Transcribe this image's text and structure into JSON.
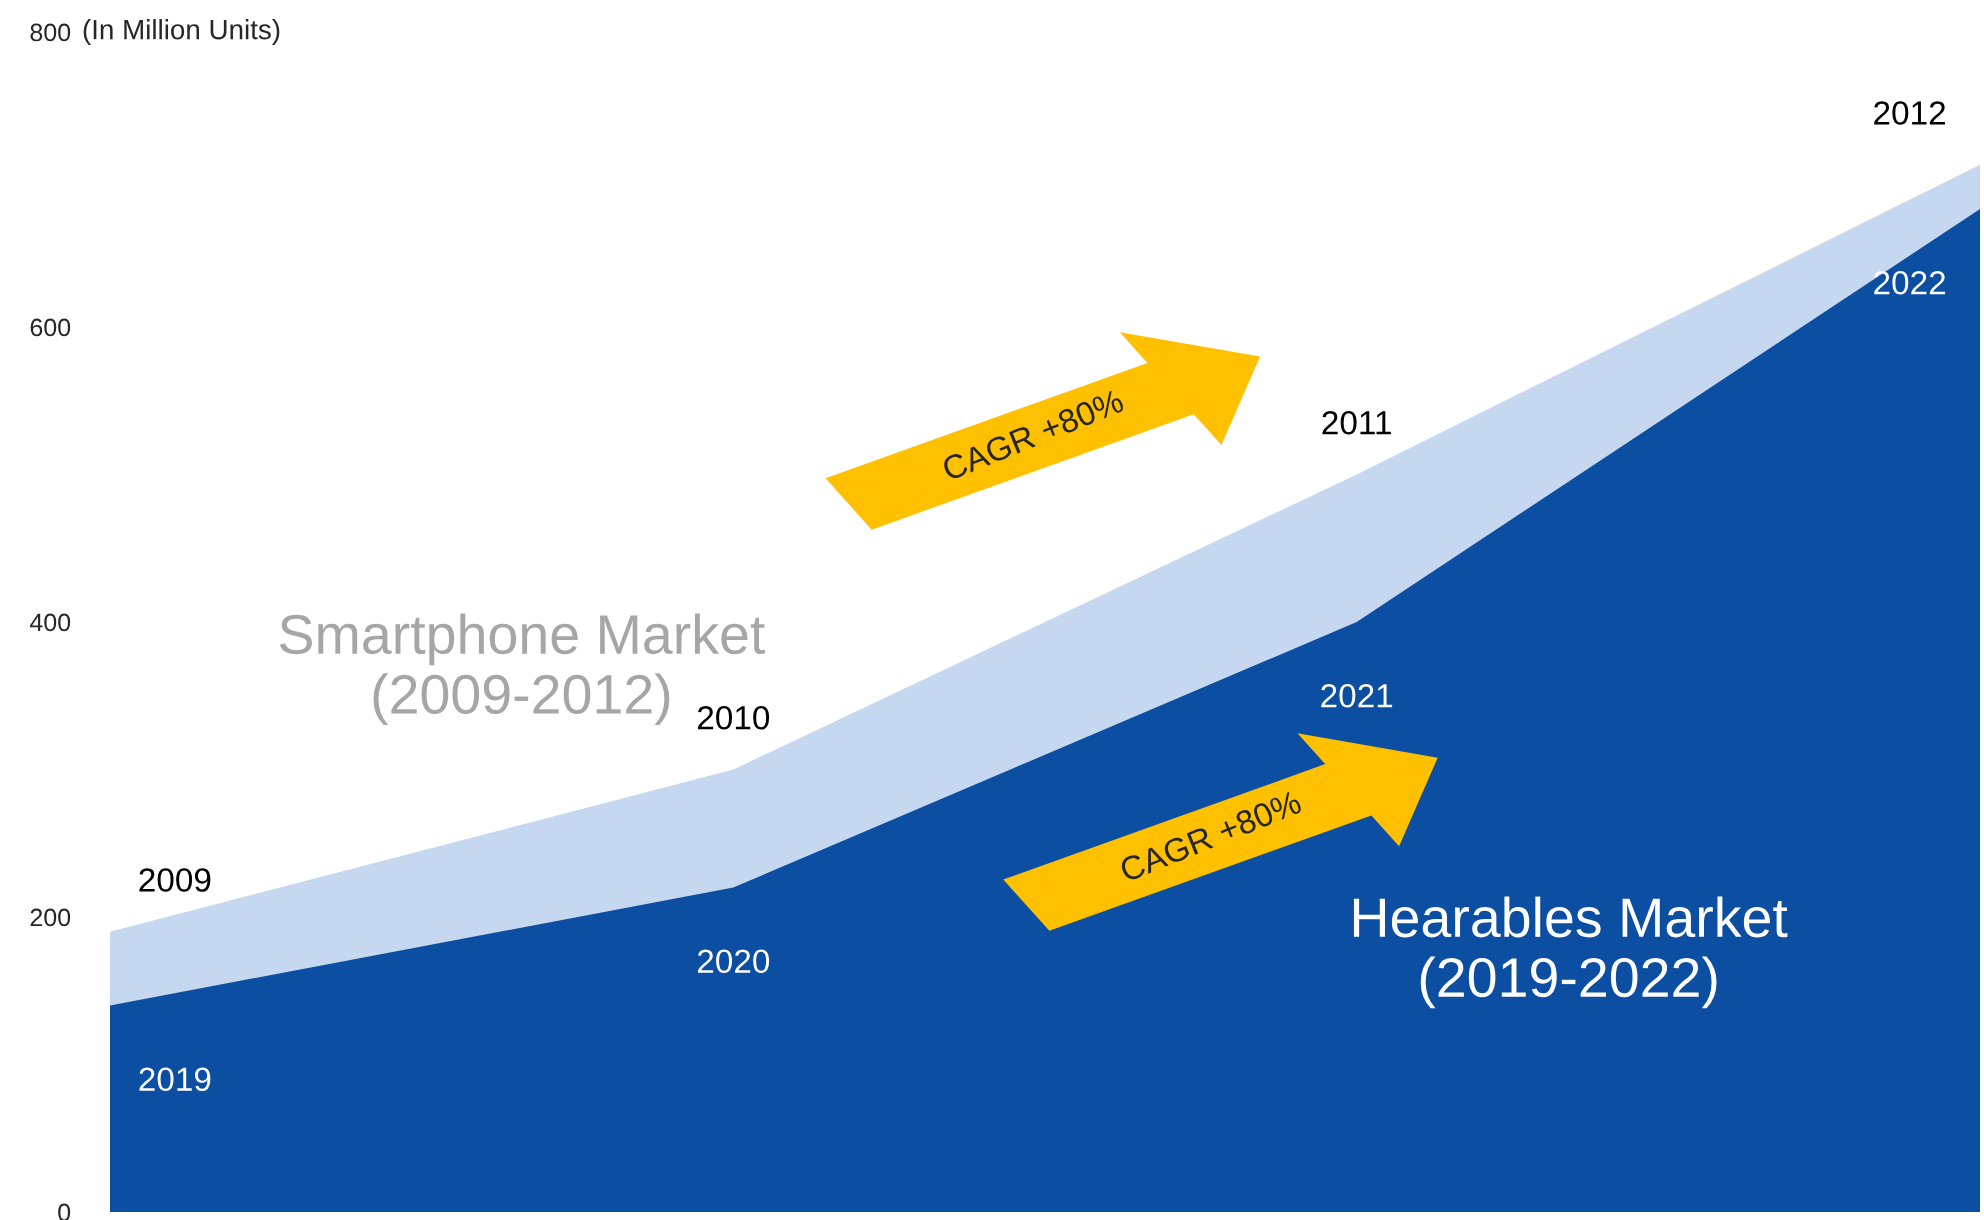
{
  "chart_data": {
    "type": "area",
    "ylabel": "(In Million Units)",
    "categories": [
      null,
      null,
      null,
      null
    ],
    "series": [
      {
        "name": "Smartphone Market\n(2009-2012)",
        "color": "#c6d8ef",
        "values": [
          190,
          300,
          500,
          710
        ]
      },
      {
        "name": "Hearables Market\n(2019-2022)",
        "color": "#0c4ea2",
        "values": [
          140,
          220,
          400,
          680
        ]
      }
    ],
    "ylim": [
      0,
      800
    ],
    "yticks": [
      0,
      200,
      400,
      600,
      800
    ],
    "tick_labels": "y",
    "grid": false,
    "legend": false,
    "annotations": [
      "CAGR +80%",
      "CAGR +80%",
      "2009",
      "2010",
      "2011",
      "2012",
      "2019",
      "2020",
      "2021",
      "2022"
    ]
  }
}
